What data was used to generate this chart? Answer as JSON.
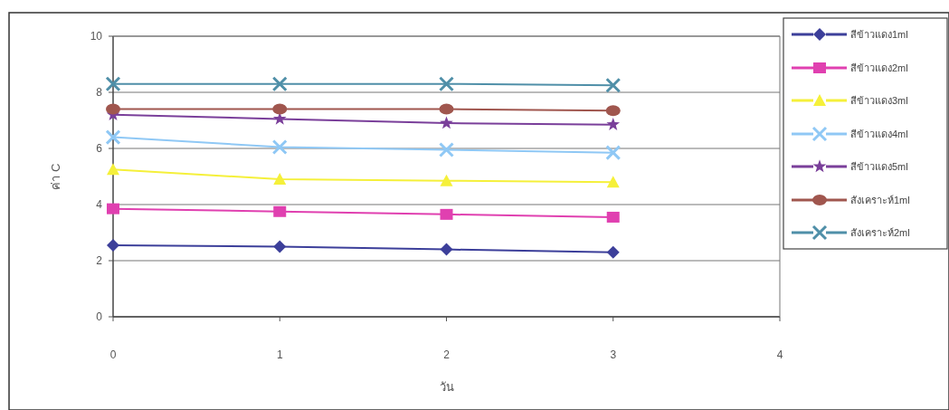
{
  "chart_data": {
    "type": "line",
    "xlabel": "วัน",
    "ylabel": "ค่า C",
    "x": [
      0,
      1,
      2,
      3
    ],
    "xlim": [
      0,
      4
    ],
    "xticks": [
      0,
      1,
      2,
      3,
      4
    ],
    "ylim": [
      0,
      10
    ],
    "yticks": [
      0,
      2,
      4,
      6,
      8,
      10
    ],
    "grid": "y",
    "legend": "right",
    "series": [
      {
        "name": "สีข้าวแดง1ml",
        "color": "#3c3f9a",
        "marker": "diamond",
        "values": [
          2.55,
          2.5,
          2.4,
          2.3
        ]
      },
      {
        "name": "สีข้าวแดง2ml",
        "color": "#e040b0",
        "marker": "square",
        "values": [
          3.85,
          3.75,
          3.65,
          3.55
        ]
      },
      {
        "name": "สีข้าวแดง3ml",
        "color": "#f5f03a",
        "marker": "triangle",
        "values": [
          5.25,
          4.9,
          4.85,
          4.8
        ]
      },
      {
        "name": "สีข้าวแดง4ml",
        "color": "#8fc8f5",
        "marker": "cross",
        "values": [
          6.4,
          6.05,
          5.95,
          5.85
        ]
      },
      {
        "name": "สีข้าวแดง5ml",
        "color": "#7a3f9a",
        "marker": "star",
        "values": [
          7.2,
          7.05,
          6.9,
          6.85
        ]
      },
      {
        "name": "สังเคราะห์1ml",
        "color": "#a0564e",
        "marker": "circle",
        "values": [
          7.4,
          7.4,
          7.4,
          7.35
        ]
      },
      {
        "name": "สังเคราะห์2ml",
        "color": "#4f8fa8",
        "marker": "cross",
        "values": [
          8.3,
          8.3,
          8.3,
          8.25
        ]
      }
    ]
  }
}
